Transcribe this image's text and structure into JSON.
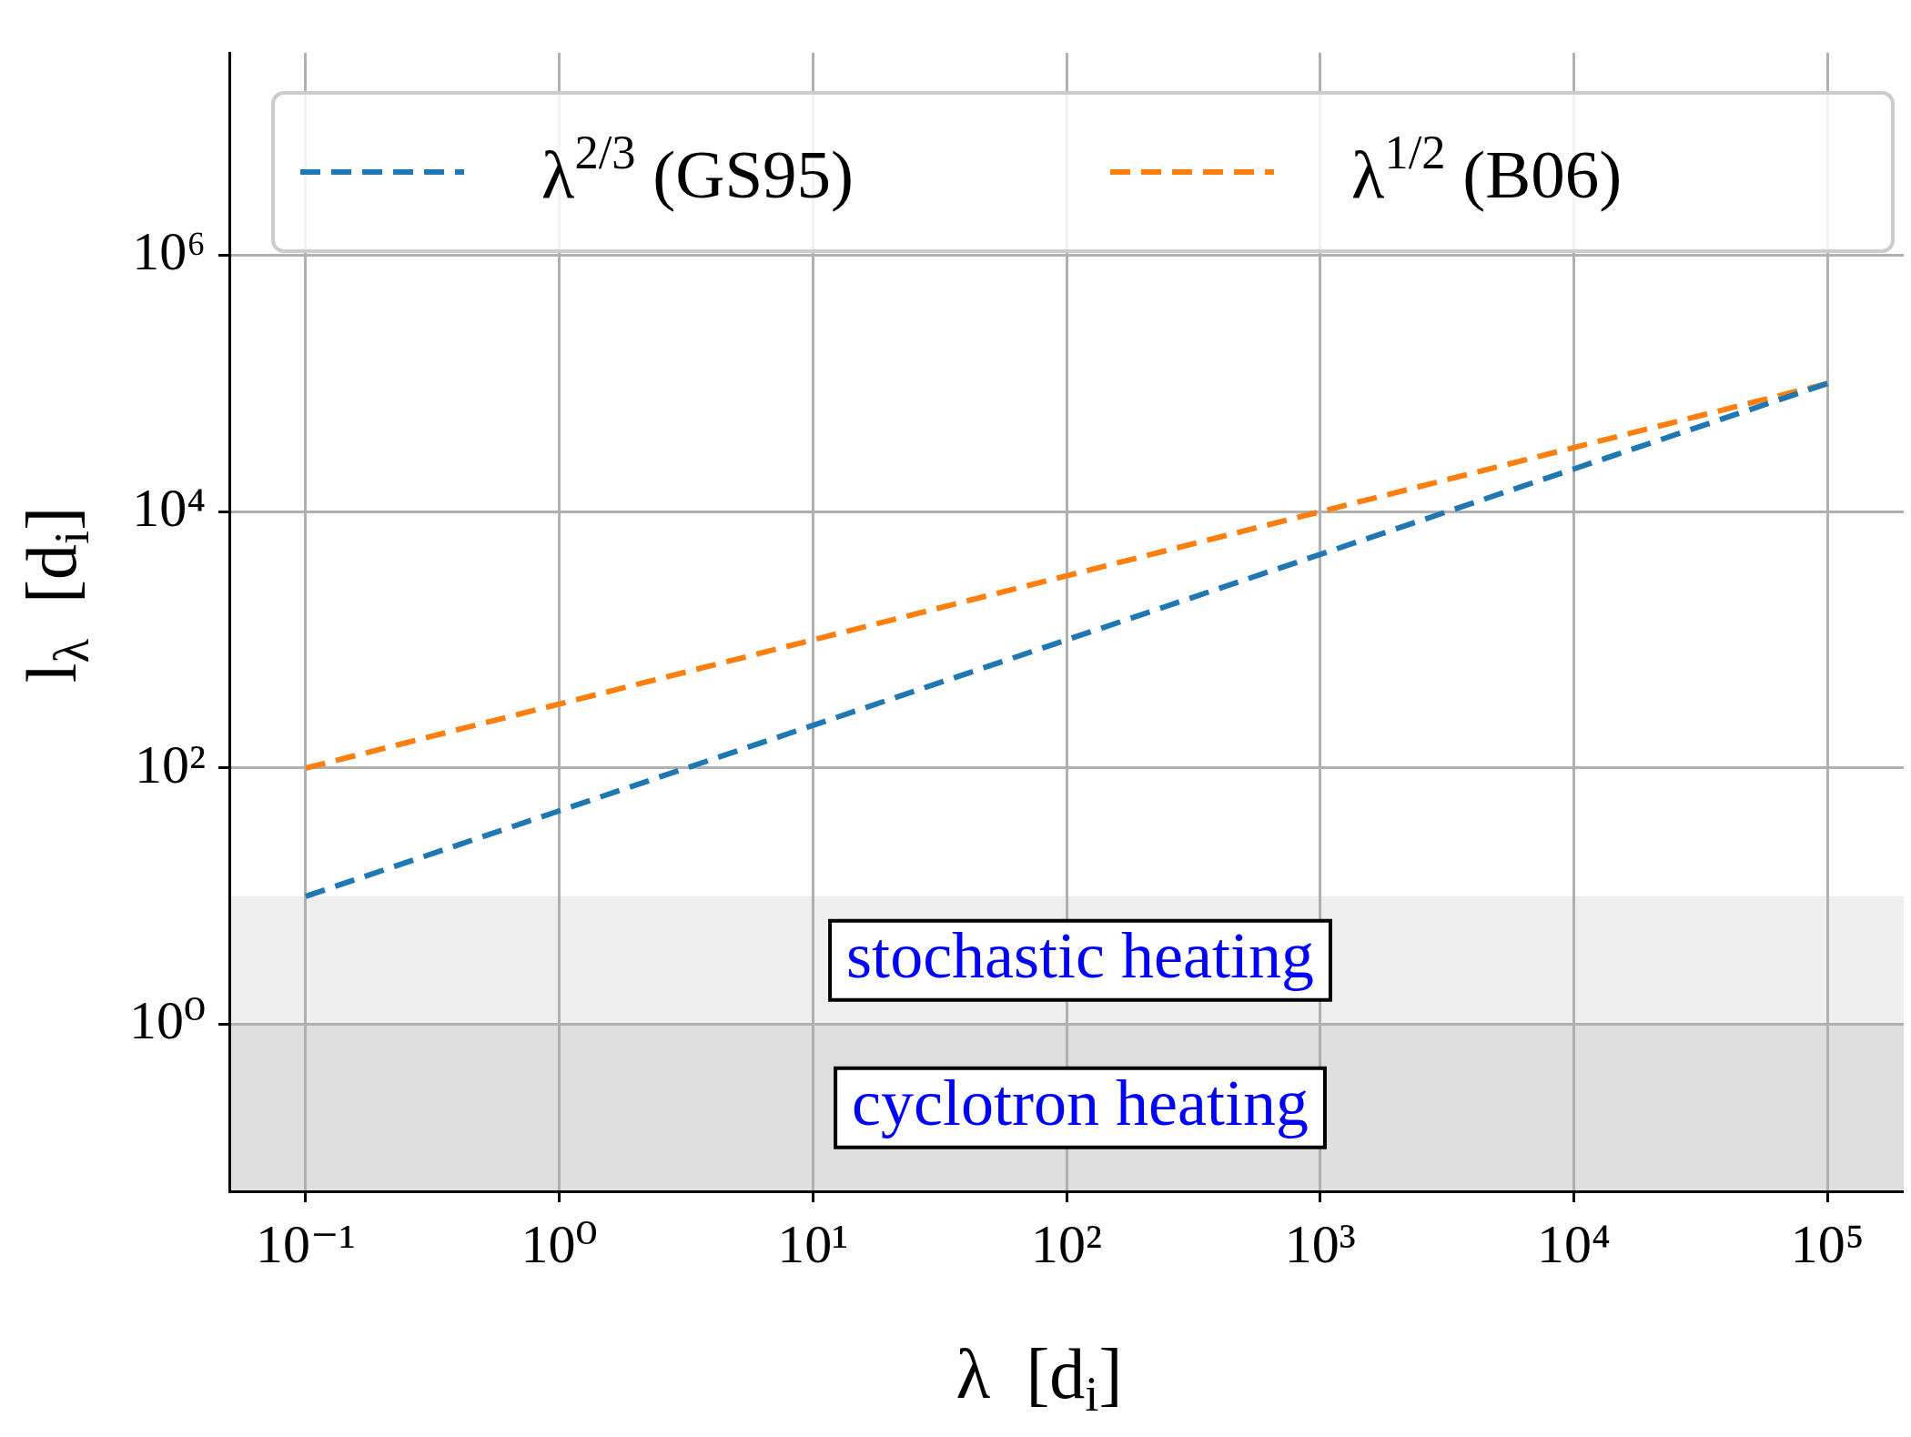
{
  "chart_data": {
    "type": "line",
    "xlabel": "λ  [d$_{i}$]",
    "ylabel": "l$_{λ}$  [d$_{i}$]",
    "log": "xy",
    "grid": true,
    "legend": "top",
    "line_style": "dashed",
    "xlim": [
      0.05,
      200000
    ],
    "ylim": [
      0.05,
      38000000
    ],
    "xticks": [
      {
        "value": 0.1,
        "label": "10⁻¹"
      },
      {
        "value": 1,
        "label": "10⁰"
      },
      {
        "value": 10,
        "label": "10¹"
      },
      {
        "value": 100,
        "label": "10²"
      },
      {
        "value": 1000,
        "label": "10³"
      },
      {
        "value": 10000,
        "label": "10⁴"
      },
      {
        "value": 100000,
        "label": "10⁵"
      }
    ],
    "yticks": [
      {
        "value": 1,
        "label": "10⁰"
      },
      {
        "value": 100,
        "label": "10²"
      },
      {
        "value": 10000,
        "label": "10⁴"
      },
      {
        "value": 1000000,
        "label": "10⁶"
      }
    ],
    "x": [
      0.1,
      100000
    ],
    "series": [
      {
        "name": "λ$^{2/3}$ (GS95)",
        "color": "#1f77b4",
        "values": [
          10,
          100000
        ]
      },
      {
        "name": "λ$^{1/2}$ (B06)",
        "color": "#ff7f0e",
        "values": [
          100,
          100000
        ]
      }
    ],
    "bands": [
      {
        "axis": "y",
        "from": 1,
        "to": 10,
        "label": "stochastic heating",
        "color": "#efefef"
      },
      {
        "axis": "y",
        "from": 0.05,
        "to": 1,
        "label": "cyclotron heating",
        "color": "#dfdfdf"
      }
    ]
  }
}
